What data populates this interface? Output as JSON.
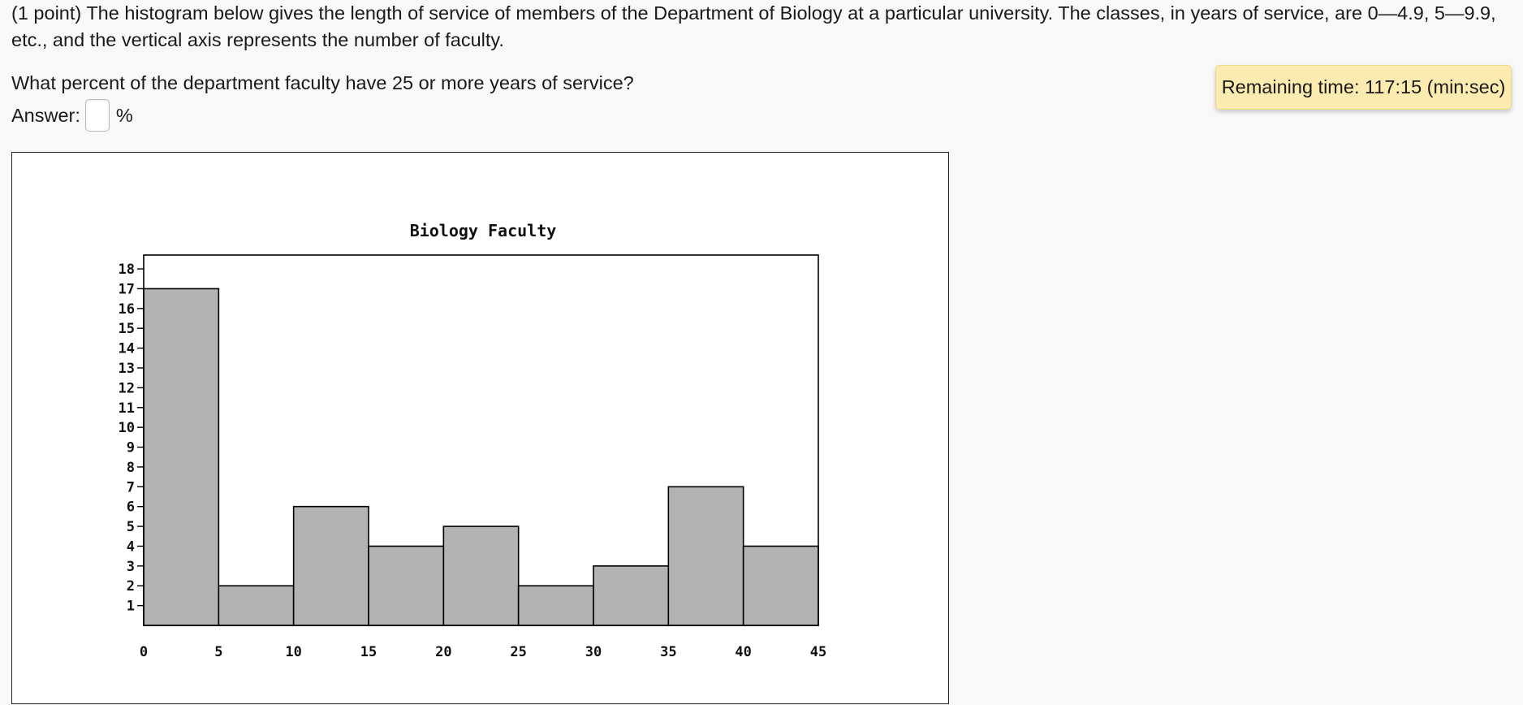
{
  "problem": {
    "text": "(1 point) The histogram below gives the length of service of members of the Department of Biology at a particular university. The classes, in years of service, are 0—4.9, 5—9.9, etc., and the vertical axis represents the number of faculty."
  },
  "question": {
    "text": "What percent of the department faculty have 25 or more years of service?"
  },
  "answer": {
    "label": "Answer:",
    "value": "",
    "unit": "%"
  },
  "timer": {
    "text": "Remaining time: 117:15 (min:sec)"
  },
  "colors": {
    "bar_fill": "#b3b3b3",
    "timer_bg": "#fcebb0"
  },
  "chart_data": {
    "type": "bar",
    "title": "Biology Faculty",
    "xlabel": "",
    "ylabel": "",
    "bin_edges": [
      0,
      5,
      10,
      15,
      20,
      25,
      30,
      35,
      40,
      45
    ],
    "x_tick_labels": [
      "0",
      "5",
      "10",
      "15",
      "20",
      "25",
      "30",
      "35",
      "40",
      "45"
    ],
    "y_tick_labels": [
      "1",
      "2",
      "3",
      "4",
      "5",
      "6",
      "7",
      "8",
      "9",
      "10",
      "11",
      "12",
      "13",
      "14",
      "15",
      "16",
      "17",
      "18"
    ],
    "values": [
      17,
      2,
      6,
      4,
      5,
      2,
      3,
      7,
      4
    ],
    "xlim": [
      0,
      45
    ],
    "ylim": [
      0,
      18.7
    ],
    "grid": false
  }
}
